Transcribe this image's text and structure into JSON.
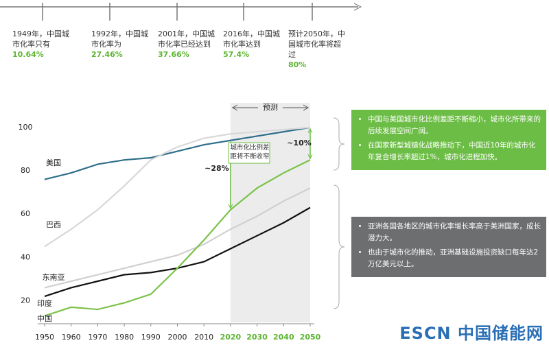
{
  "timeline": [
    {
      "text": "1949年，中国城市化率只有",
      "value": "10.64%"
    },
    {
      "text": "1992年，中国城市化率为",
      "value": "27.46%"
    },
    {
      "text": "2001年，中国城市化率已经达到",
      "value": "37.66%"
    },
    {
      "text": "2016年，中国城市化率达到",
      "value": "57.4%"
    },
    {
      "text": "预计2050年，中国城市化率将超过",
      "value": "80%"
    }
  ],
  "chart_data": {
    "type": "line",
    "x": [
      1950,
      1960,
      1970,
      1980,
      1990,
      2000,
      2010,
      2020,
      2030,
      2040,
      2050
    ],
    "xlim": [
      1950,
      2050
    ],
    "xticks": [
      1950,
      1960,
      1970,
      1980,
      1990,
      2000,
      2010,
      2020,
      2030,
      2040,
      2050
    ],
    "ylim": [
      10,
      105
    ],
    "yticks": [
      20,
      40,
      60,
      80,
      100
    ],
    "forecast": {
      "label": "预测",
      "range": [
        2020,
        2050
      ]
    },
    "series": [
      {
        "name": "美国",
        "color": "#2e6e8a",
        "values": [
          76,
          79,
          83,
          85,
          86,
          89,
          92,
          94,
          96,
          98,
          100
        ]
      },
      {
        "name": "巴西",
        "color": "#d8d8d8",
        "values": [
          45,
          53,
          62,
          73,
          85,
          91,
          95,
          97,
          98,
          99,
          100
        ]
      },
      {
        "name": "东南亚",
        "color": "#d0d0d0",
        "values": [
          26,
          29,
          32,
          35,
          38,
          41,
          46,
          53,
          59,
          66,
          72
        ]
      },
      {
        "name": "印度",
        "color": "#111111",
        "values": [
          22,
          26,
          29,
          32,
          33,
          35,
          38,
          44,
          50,
          56,
          63
        ]
      },
      {
        "name": "中国",
        "color": "#7cc24a",
        "values": [
          13,
          17,
          16,
          19,
          23,
          35,
          48,
          62,
          72,
          79,
          85
        ]
      }
    ],
    "annotations": [
      "~28%",
      "~10%",
      "城市化比例差距将不断收窄"
    ]
  },
  "notes": [
    {
      "items": [
        "中国与美国城市化比例差距不断缩小，城市化所带来的后续发展空间广阔。",
        "在国家新型城镇化战略推动下，中国近10年的城市化年复合增长率超过1%，城市化进程加快。"
      ]
    },
    {
      "items": [
        "亚洲各国各地区的城市化率增长率高于美洲国家，成长潜力大。",
        "也由于城市化的推动，亚洲基础设施投资缺口每年达2万亿美元以上。"
      ]
    }
  ],
  "watermark": "ESCN 中国储能网"
}
